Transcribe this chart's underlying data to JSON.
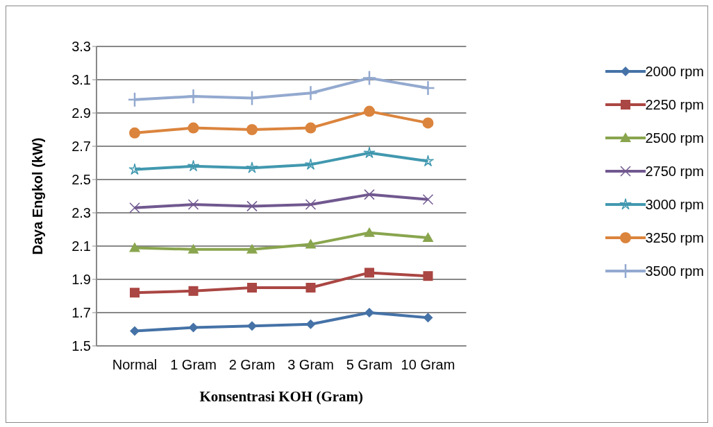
{
  "chart_data": {
    "type": "line",
    "xlabel": "Konsentrasi KOH (Gram)",
    "ylabel": "Daya Engkol (kW)",
    "categories": [
      "Normal",
      "1 Gram",
      "2 Gram",
      "3 Gram",
      "5 Gram",
      "10 Gram"
    ],
    "ylim": [
      1.5,
      3.3
    ],
    "yticks": [
      1.5,
      1.7,
      1.9,
      2.1,
      2.3,
      2.5,
      2.7,
      2.9,
      3.1,
      3.3
    ],
    "grid": "y",
    "legend": "right",
    "series": [
      {
        "name": "2000 rpm",
        "color": "#4572a7",
        "marker": "diamond",
        "values": [
          1.59,
          1.61,
          1.62,
          1.63,
          1.7,
          1.67
        ]
      },
      {
        "name": "2250 rpm",
        "color": "#aa4643",
        "marker": "square",
        "values": [
          1.82,
          1.83,
          1.85,
          1.85,
          1.94,
          1.92
        ]
      },
      {
        "name": "2500 rpm",
        "color": "#89a54e",
        "marker": "triangle",
        "values": [
          2.09,
          2.08,
          2.08,
          2.11,
          2.18,
          2.15
        ]
      },
      {
        "name": "2750 rpm",
        "color": "#71588f",
        "marker": "cross",
        "values": [
          2.33,
          2.35,
          2.34,
          2.35,
          2.41,
          2.38
        ]
      },
      {
        "name": "3000 rpm",
        "color": "#4198af",
        "marker": "star",
        "values": [
          2.56,
          2.58,
          2.57,
          2.59,
          2.66,
          2.61
        ]
      },
      {
        "name": "3250 rpm",
        "color": "#db843d",
        "marker": "circle",
        "values": [
          2.78,
          2.81,
          2.8,
          2.81,
          2.91,
          2.84
        ]
      },
      {
        "name": "3500 rpm",
        "color": "#93a9cf",
        "marker": "plus",
        "values": [
          2.98,
          3.0,
          2.99,
          3.02,
          3.11,
          3.05
        ]
      }
    ]
  }
}
